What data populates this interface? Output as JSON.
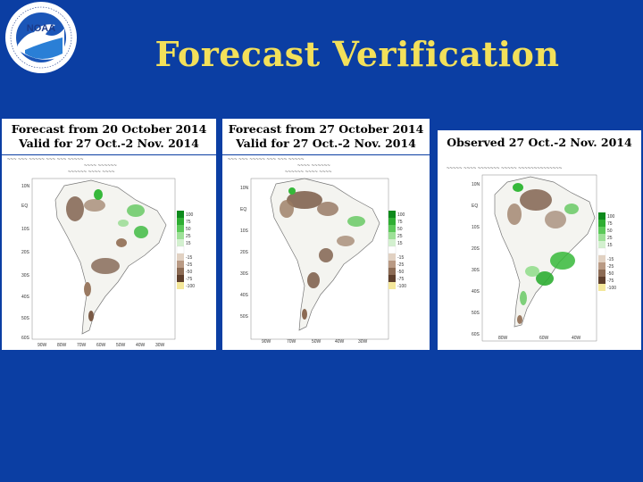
{
  "title": "Forecast Verification",
  "logo_text": "NOAA",
  "panels": [
    {
      "caption_line1": "Forecast from 20 October 2014",
      "caption_line2": "Valid for 27 Oct.-2 Nov. 2014",
      "lat_labels": [
        "10N",
        "EQ",
        "10S",
        "20S",
        "30S",
        "40S",
        "50S",
        "60S"
      ],
      "lon_labels": [
        "90W",
        "80W",
        "70W",
        "60W",
        "50W",
        "40W",
        "30W"
      ],
      "legend": [
        "100",
        "75",
        "50",
        "25",
        "15",
        "-15",
        "-25",
        "-50",
        "-75",
        "-100"
      ]
    },
    {
      "caption_line1": "Forecast from 27 October 2014",
      "caption_line2": "Valid for 27 Oct.-2 Nov. 2014",
      "lat_labels": [
        "10N",
        "EQ",
        "10S",
        "20S",
        "30S",
        "40S",
        "50S"
      ],
      "lon_labels": [
        "90W",
        "70W",
        "50W",
        "40W",
        "30W"
      ],
      "legend": [
        "100",
        "75",
        "50",
        "25",
        "15",
        "-15",
        "-25",
        "-50",
        "-75",
        "-100"
      ]
    },
    {
      "caption_line1": "Observed 27 Oct.-2 Nov. 2014",
      "caption_line2": "",
      "lat_labels": [
        "10N",
        "EQ",
        "10S",
        "20S",
        "30S",
        "40S",
        "50S",
        "60S"
      ],
      "lon_labels": [
        "80W",
        "60W",
        "40W"
      ],
      "legend": [
        "100",
        "75",
        "50",
        "25",
        "15",
        "-15",
        "-25",
        "-50",
        "-75",
        "-100"
      ]
    }
  ],
  "colors": {
    "background": "#0b3ea3",
    "title": "#f3e05a",
    "wet": "#36b83a",
    "dry": "#7a5a46"
  }
}
